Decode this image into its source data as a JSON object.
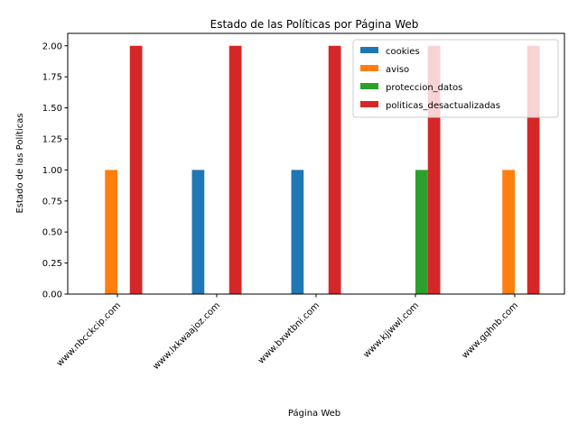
{
  "chart_data": {
    "type": "bar",
    "title": "Estado de las Políticas por Página Web",
    "xlabel": "Página Web",
    "ylabel": "Estado de las Políticas",
    "categories": [
      "www.nbcckcip.com",
      "www.lxkwaajoz.com",
      "www.bxwtbni.com",
      "www.kjjwwl.com",
      "www.gqhnb.com"
    ],
    "series": [
      {
        "name": "cookies",
        "color": "#1f77b4",
        "values": [
          0,
          1,
          1,
          0,
          0
        ]
      },
      {
        "name": "aviso",
        "color": "#ff7f0e",
        "values": [
          1,
          0,
          0,
          0,
          1
        ]
      },
      {
        "name": "proteccion_datos",
        "color": "#2ca02c",
        "values": [
          0,
          0,
          0,
          1,
          0
        ]
      },
      {
        "name": "politicas_desactualizadas",
        "color": "#d62728",
        "values": [
          2,
          2,
          2,
          2,
          2
        ]
      }
    ],
    "ylim": [
      0,
      2.1
    ],
    "yticks": [
      "0.00",
      "0.25",
      "0.50",
      "0.75",
      "1.00",
      "1.25",
      "1.50",
      "1.75",
      "2.00"
    ],
    "legend": "top-right",
    "grid": false
  }
}
